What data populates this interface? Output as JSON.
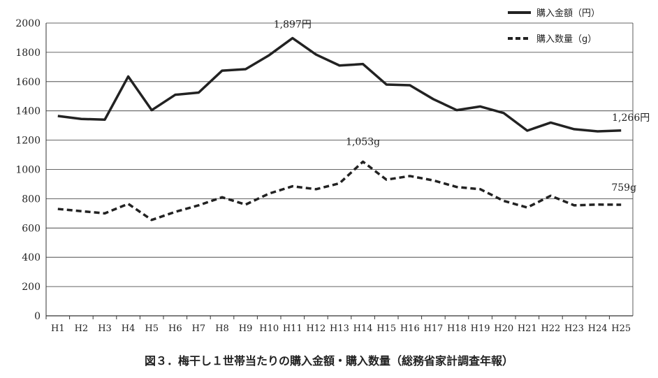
{
  "chart_data": {
    "type": "line",
    "title": "図３．梅干し１世帯当たりの購入金額・購入数量（総務省家計調査年報）",
    "xlabel": "",
    "ylabel": "",
    "ylim": [
      0,
      2000
    ],
    "yticks": [
      0,
      200,
      400,
      600,
      800,
      1000,
      1200,
      1400,
      1600,
      1800,
      2000
    ],
    "grid": true,
    "legend_position": "top-right",
    "categories": [
      "H1",
      "H2",
      "H3",
      "H4",
      "H5",
      "H6",
      "H7",
      "H8",
      "H9",
      "H10",
      "H11",
      "H12",
      "H13",
      "H14",
      "H15",
      "H16",
      "H17",
      "H18",
      "H19",
      "H20",
      "H21",
      "H22",
      "H23",
      "H24",
      "H25"
    ],
    "series": [
      {
        "name": "購入金額（円）",
        "style": "solid",
        "values": [
          1365,
          1345,
          1340,
          1635,
          1405,
          1510,
          1525,
          1675,
          1685,
          1780,
          1897,
          1785,
          1710,
          1720,
          1580,
          1575,
          1480,
          1405,
          1430,
          1385,
          1265,
          1320,
          1275,
          1260,
          1266
        ]
      },
      {
        "name": "購入数量（g）",
        "style": "dashed",
        "values": [
          730,
          715,
          700,
          765,
          655,
          710,
          755,
          810,
          760,
          835,
          885,
          865,
          905,
          1053,
          930,
          955,
          925,
          880,
          865,
          785,
          740,
          820,
          755,
          760,
          759
        ]
      }
    ],
    "annotations": [
      {
        "text": "1,897円",
        "series": 0,
        "index": 10
      },
      {
        "text": "1,266円",
        "series": 0,
        "index": 24
      },
      {
        "text": "1,053g",
        "series": 1,
        "index": 13
      },
      {
        "text": "759g",
        "series": 1,
        "index": 24
      }
    ]
  }
}
